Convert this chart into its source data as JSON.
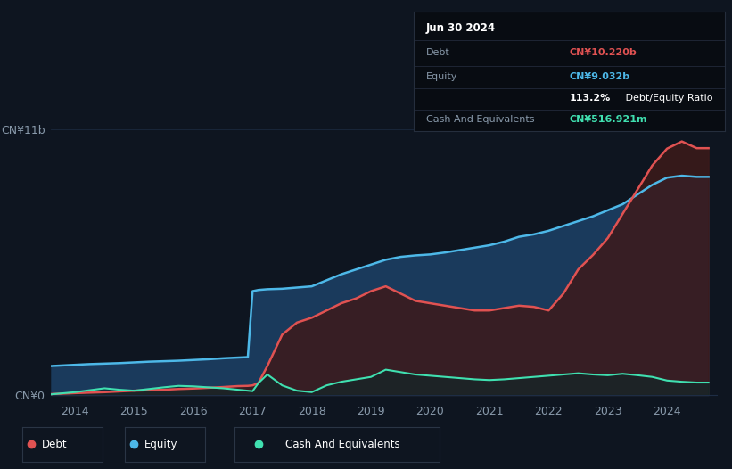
{
  "bg_color": "#0e1520",
  "plot_bg_color": "#0e1520",
  "tooltip_bg": "#080c12",
  "tooltip_border": "#252e3d",
  "ylabel_top": "CN¥11b",
  "ylabel_bottom": "CN¥0",
  "x_min": 2013.6,
  "x_max": 2024.85,
  "y_min": -0.15,
  "y_max": 11.5,
  "debt_color": "#e05252",
  "equity_color": "#4db8e8",
  "cash_color": "#40e0b0",
  "equity_fill_color": "#1a3a5c",
  "debt_fill_color": "#3d1a1a",
  "cash_fill_color": "#0d2828",
  "grid_color": "#1e2d45",
  "tick_color": "#8899aa",
  "tooltip": {
    "date": "Jun 30 2024",
    "debt_label": "Debt",
    "debt_value": "CN¥10.220b",
    "equity_label": "Equity",
    "equity_value": "CN¥9.032b",
    "ratio_value": "113.2%",
    "ratio_label": " Debt/Equity Ratio",
    "cash_label": "Cash And Equivalents",
    "cash_value": "CN¥516.921m"
  },
  "years": [
    2013.6,
    2014.0,
    2014.25,
    2014.5,
    2014.75,
    2015.0,
    2015.25,
    2015.5,
    2015.75,
    2016.0,
    2016.25,
    2016.5,
    2016.75,
    2016.92,
    2017.0,
    2017.1,
    2017.25,
    2017.5,
    2017.75,
    2018.0,
    2018.25,
    2018.5,
    2018.75,
    2019.0,
    2019.25,
    2019.5,
    2019.75,
    2020.0,
    2020.25,
    2020.5,
    2020.75,
    2021.0,
    2021.25,
    2021.5,
    2021.75,
    2022.0,
    2022.25,
    2022.5,
    2022.75,
    2023.0,
    2023.25,
    2023.5,
    2023.75,
    2024.0,
    2024.25,
    2024.5,
    2024.7
  ],
  "equity": [
    1.2,
    1.25,
    1.28,
    1.3,
    1.32,
    1.35,
    1.38,
    1.4,
    1.42,
    1.45,
    1.48,
    1.52,
    1.55,
    1.57,
    4.3,
    4.35,
    4.38,
    4.4,
    4.45,
    4.5,
    4.75,
    5.0,
    5.2,
    5.4,
    5.6,
    5.72,
    5.78,
    5.82,
    5.9,
    6.0,
    6.1,
    6.2,
    6.35,
    6.55,
    6.65,
    6.8,
    7.0,
    7.2,
    7.4,
    7.65,
    7.9,
    8.3,
    8.7,
    9.0,
    9.08,
    9.032,
    9.032
  ],
  "debt": [
    0.04,
    0.08,
    0.1,
    0.12,
    0.15,
    0.18,
    0.2,
    0.22,
    0.25,
    0.27,
    0.3,
    0.33,
    0.37,
    0.38,
    0.4,
    0.5,
    1.2,
    2.5,
    3.0,
    3.2,
    3.5,
    3.8,
    4.0,
    4.3,
    4.5,
    4.2,
    3.9,
    3.8,
    3.7,
    3.6,
    3.5,
    3.5,
    3.6,
    3.7,
    3.65,
    3.5,
    4.2,
    5.2,
    5.8,
    6.5,
    7.5,
    8.5,
    9.5,
    10.2,
    10.5,
    10.22,
    10.22
  ],
  "cash": [
    0.03,
    0.12,
    0.2,
    0.28,
    0.22,
    0.18,
    0.25,
    0.32,
    0.38,
    0.36,
    0.32,
    0.28,
    0.22,
    0.18,
    0.16,
    0.5,
    0.85,
    0.4,
    0.18,
    0.12,
    0.4,
    0.55,
    0.65,
    0.75,
    1.05,
    0.95,
    0.85,
    0.8,
    0.75,
    0.7,
    0.65,
    0.62,
    0.65,
    0.7,
    0.75,
    0.8,
    0.85,
    0.9,
    0.85,
    0.82,
    0.88,
    0.82,
    0.75,
    0.6,
    0.55,
    0.517,
    0.517
  ]
}
